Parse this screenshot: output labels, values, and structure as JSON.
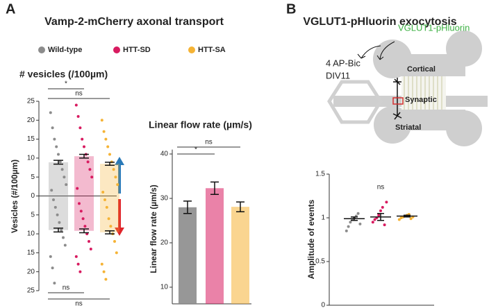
{
  "panels": [
    {
      "letter": "A",
      "title": "Vamp-2-mCherry axonal transport"
    },
    {
      "letter": "B",
      "title": "VGLUT1-pHluorin exocytosis"
    }
  ],
  "diagram": {
    "reporter": "VGLUT1-pHluorin",
    "stimulus": [
      "4 AP-Bic",
      "DIV11"
    ],
    "chambers": [
      "Cortical",
      "Synaptic",
      "Striatal"
    ]
  },
  "chart_data": [
    {
      "type": "bar",
      "title": "# vesicles (/100µm)",
      "y_label": "Vesicles (#/100µm)",
      "ylim": [
        -25,
        25
      ],
      "yticks": [
        25,
        20,
        15,
        10,
        5,
        0,
        {
          "value": -5,
          "label": "5"
        },
        {
          "value": -10,
          "label": "10"
        },
        {
          "value": -15,
          "label": "15"
        },
        {
          "value": -20,
          "label": "20"
        },
        {
          "value": -25,
          "label": "25"
        }
      ],
      "series": [
        {
          "name": "Wild-type",
          "color": "#8c8c8c",
          "values": [
            8.9,
            -9
          ],
          "errors": [
            0.5,
            0.5
          ],
          "points": [
            22,
            18,
            15,
            13,
            11,
            9,
            7,
            5,
            3,
            1.5,
            -1,
            -3,
            -5,
            -7,
            -9,
            -11,
            -13,
            -16,
            -19,
            -23
          ]
        },
        {
          "name": "HTT-SD",
          "color": "#d81b60",
          "values": [
            10.5,
            -9.2
          ],
          "errors": [
            0.5,
            0.5
          ],
          "points": [
            24,
            21,
            18,
            15,
            13,
            11,
            9,
            7,
            5,
            2,
            -2,
            -4,
            -6,
            -8,
            -10,
            -12,
            -14,
            -16,
            -18,
            -20
          ]
        },
        {
          "name": "HTT-SA",
          "color": "#f5b335",
          "values": [
            8.5,
            -9.6
          ],
          "errors": [
            0.4,
            0.4
          ],
          "points": [
            20,
            17,
            15,
            13,
            11,
            9,
            7,
            5,
            3,
            1,
            -1,
            -3,
            -6,
            -8,
            -10,
            -12,
            -15,
            -18,
            -20,
            -22
          ]
        }
      ],
      "annotations": [
        {
          "text": "*"
        },
        {
          "text": "ns"
        },
        {
          "text": "ns"
        },
        {
          "text": "ns"
        }
      ]
    },
    {
      "type": "bar",
      "title": "Linear flow rate (µm/s)",
      "y_label": "Linear flow rate (µm/s)",
      "categories": [
        null,
        null,
        null
      ],
      "values": [
        28,
        32.3,
        28.1
      ],
      "errors": [
        1.4,
        1.4,
        1.1
      ],
      "colors": [
        "#8c8c8c",
        "#d81b60",
        "#f5b335"
      ],
      "ylim": [
        6.25,
        41
      ],
      "yticks": [
        10,
        20,
        30,
        40
      ],
      "annotations": [
        {
          "text": "ns"
        },
        {
          "text": "*"
        }
      ]
    },
    {
      "type": "dot",
      "y_label": "Amplitude of events",
      "categories": [
        null,
        null,
        null
      ],
      "values": [
        0.99,
        1.01,
        1.02
      ],
      "errors": [
        0.02,
        0.04,
        0.01
      ],
      "colors": [
        "#8c8c8c",
        "#d81b60",
        "#f5b335"
      ],
      "points": [
        [
          0.85,
          0.9,
          0.95,
          0.98,
          1,
          1.02,
          1.05,
          0.93
        ],
        [
          0.95,
          0.98,
          1,
          1.03,
          1.08,
          1.12,
          0.92,
          1.18
        ],
        [
          0.98,
          1,
          1.01,
          1.02,
          1.03,
          1.04,
          0.99,
          1.01
        ]
      ],
      "ylim": [
        0,
        1.5
      ],
      "yticks": [
        0,
        0.5,
        1,
        1.5
      ],
      "annotations": [
        {
          "text": "ns"
        }
      ]
    }
  ]
}
